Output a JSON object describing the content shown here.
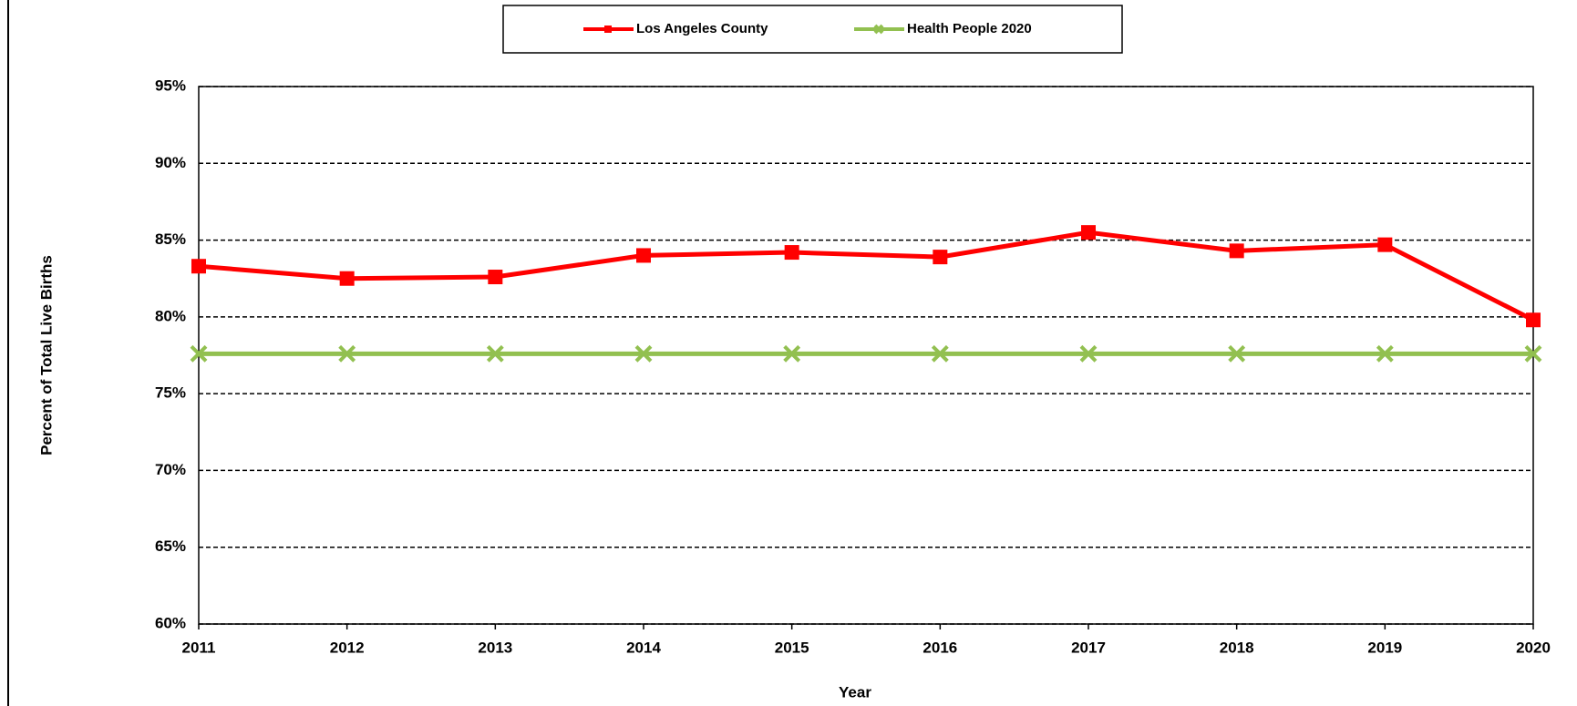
{
  "chart_data": {
    "type": "line",
    "ylabel": "Percent of Total Live Births",
    "xlabel": "Year",
    "categories": [
      "2011",
      "2012",
      "2013",
      "2014",
      "2015",
      "2016",
      "2017",
      "2018",
      "2019",
      "2020"
    ],
    "series": [
      {
        "name": "Los Angeles County",
        "color": "#ff0000",
        "marker": "square",
        "values": [
          83.3,
          82.5,
          82.6,
          84.0,
          84.2,
          83.9,
          85.5,
          84.3,
          84.7,
          79.8
        ]
      },
      {
        "name": "Health People 2020",
        "color": "#92c050",
        "marker": "x",
        "values": [
          77.6,
          77.6,
          77.6,
          77.6,
          77.6,
          77.6,
          77.6,
          77.6,
          77.6,
          77.6
        ]
      }
    ],
    "ylim": [
      60,
      95
    ],
    "yticks": [
      {
        "value": 60,
        "label": "60%"
      },
      {
        "value": 65,
        "label": "65%"
      },
      {
        "value": 70,
        "label": "70%"
      },
      {
        "value": 75,
        "label": "75%"
      },
      {
        "value": 80,
        "label": "80%"
      },
      {
        "value": 85,
        "label": "85%"
      },
      {
        "value": 90,
        "label": "90%"
      },
      {
        "value": 95,
        "label": "95%"
      }
    ],
    "grid": true,
    "legend": "top"
  }
}
